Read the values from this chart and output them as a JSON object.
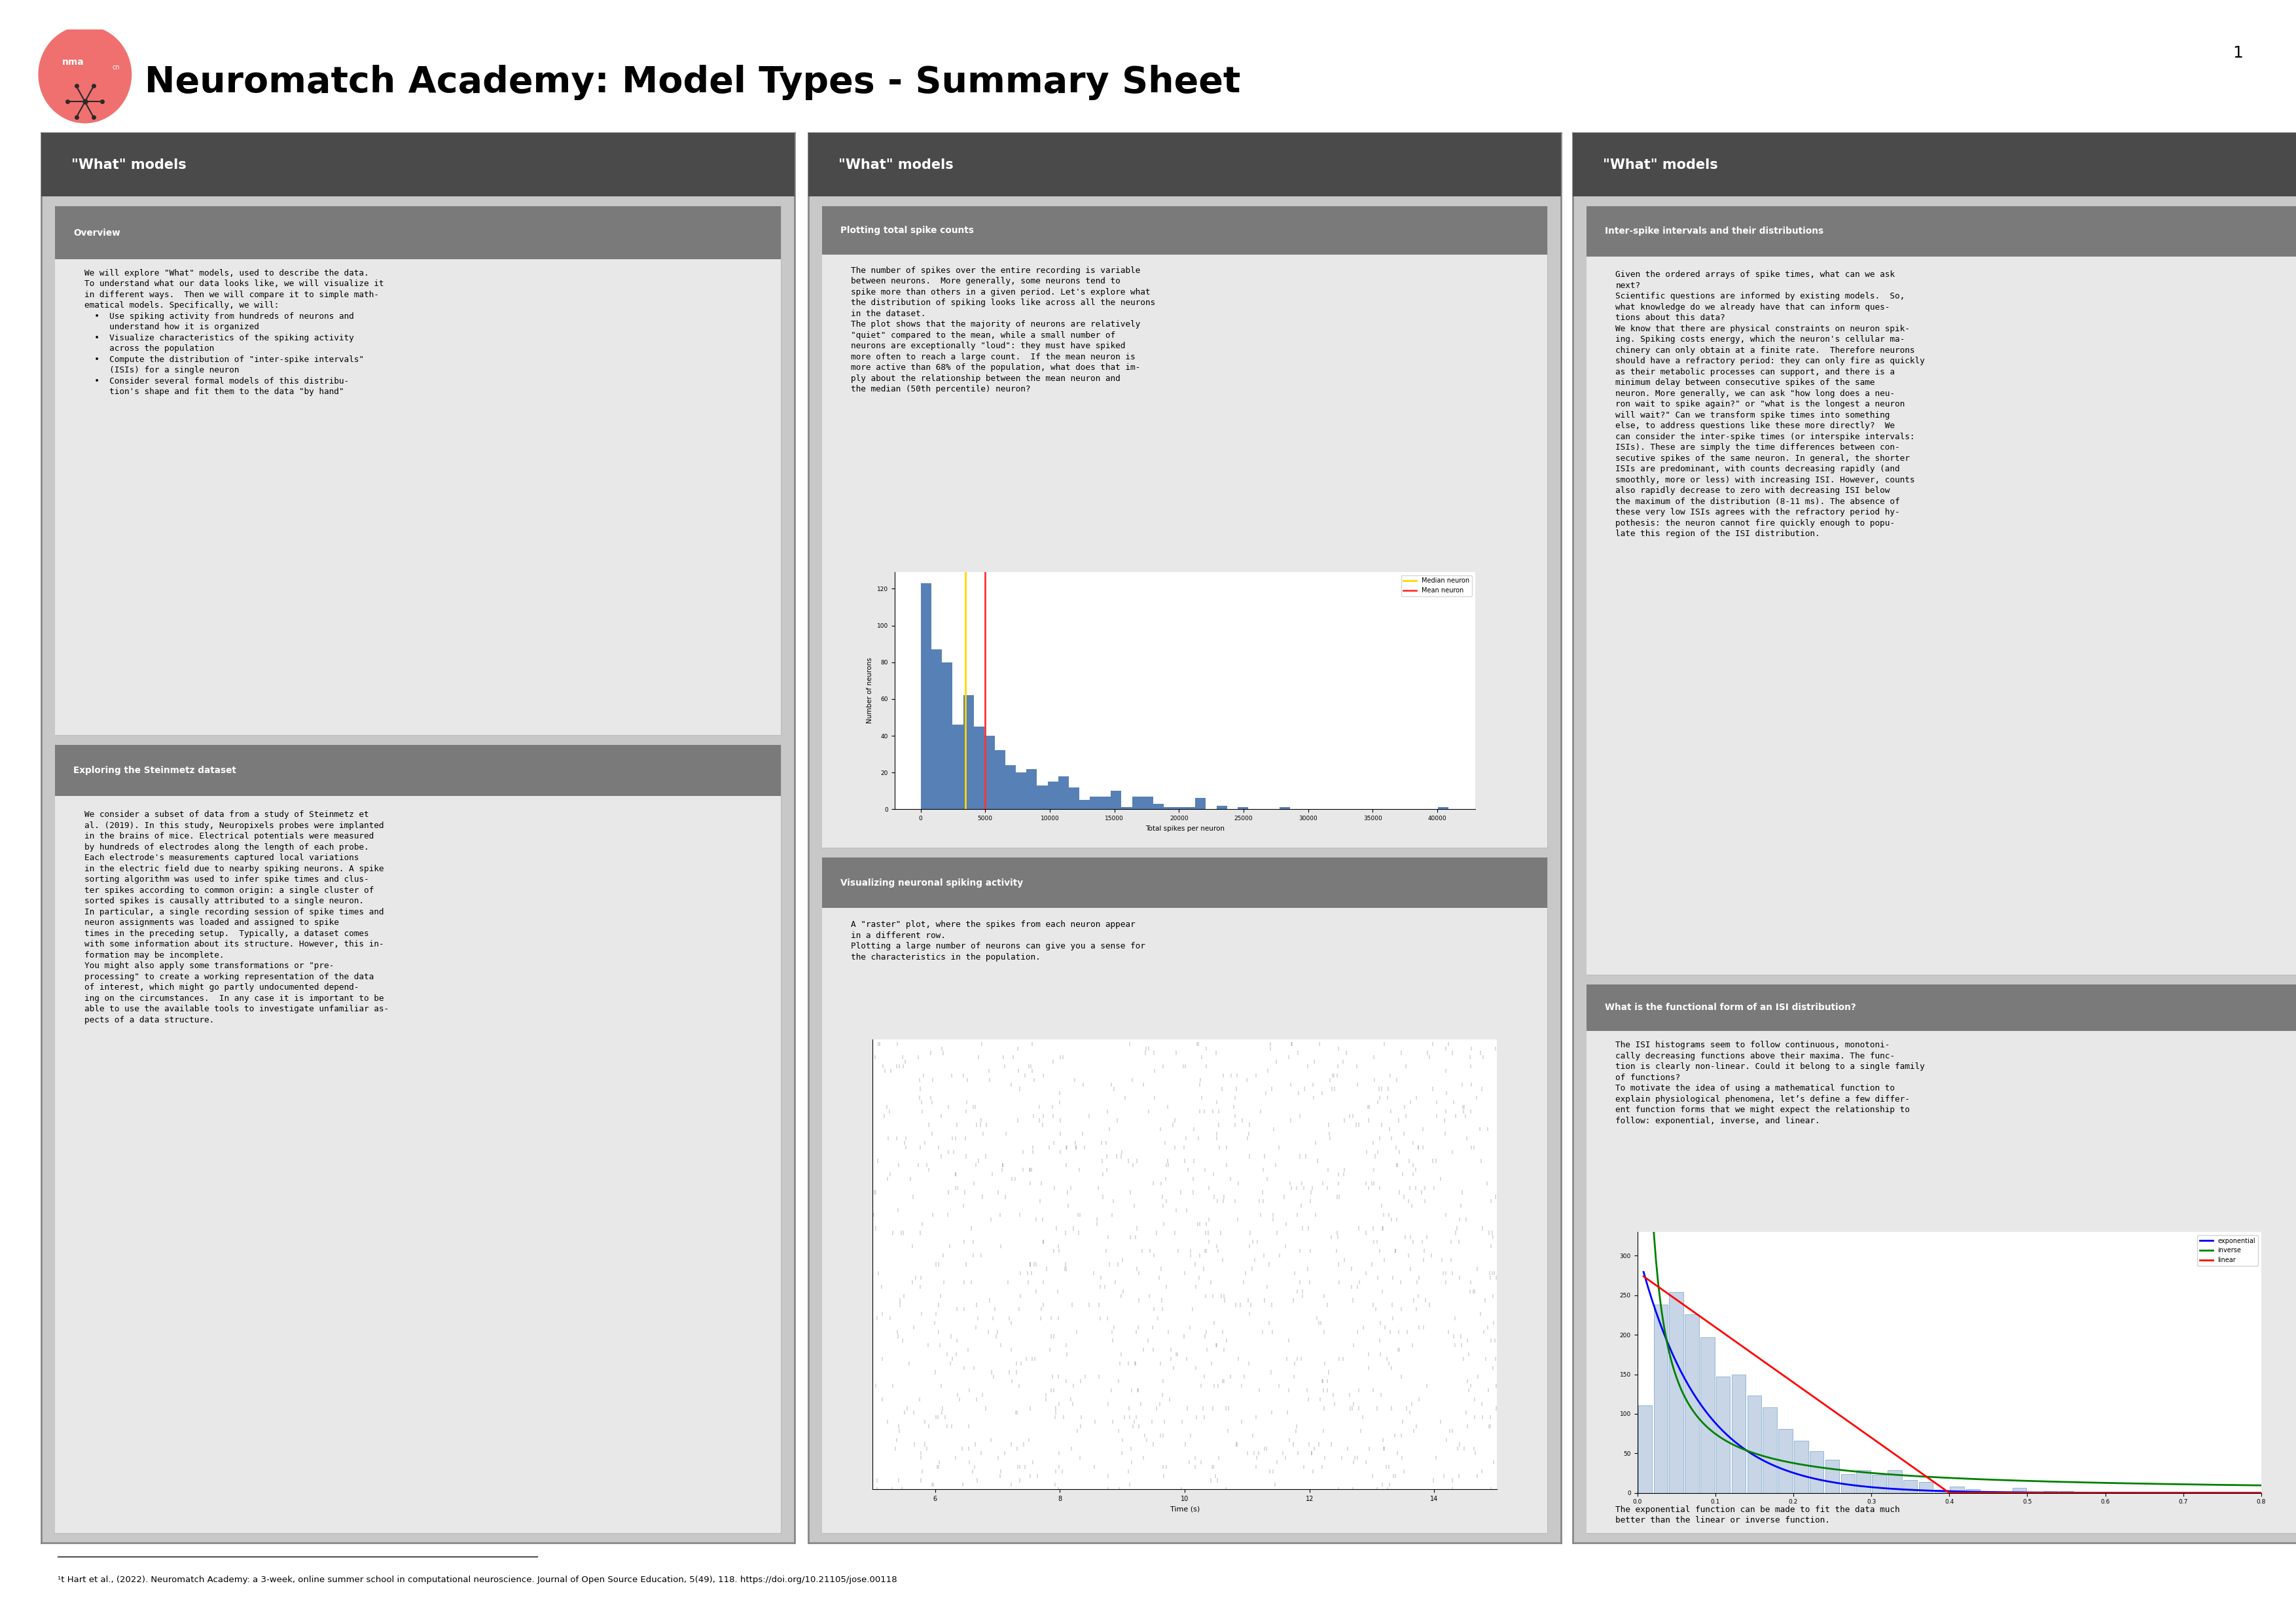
{
  "title": "Neuromatch Academy: Model Types - Summary Sheet",
  "footnote": "¹t Hart et al., (2022). Neuromatch Academy: a 3-week, online summer school in computational neuroscience. Journal of Open Source Education, 5(49), 118. https://doi.org/10.21105/jose.00118",
  "bg_color": "#ffffff",
  "panel_bg": "#c8c8c8",
  "panel_border": "#888888",
  "col_header_bg": "#4a4a4a",
  "col_header_text": "#ffffff",
  "sec_header_bg": "#7a7a7a",
  "sec_header_text": "#ffffff",
  "sec_body_bg": "#e8e8e8",
  "logo_color": "#f07070",
  "col1_header": "\"What\" models",
  "col2_header": "\"What\" models",
  "col3_header": "\"What\" models",
  "sec1_title": "Overview",
  "sec1_body": "We will explore \"What\" models, used to describe the data.\nTo understand what our data looks like, we will visualize it\nin different ways.  Then we will compare it to simple math-\nematical models. Specifically, we will:\n  •  Use spiking activity from hundreds of neurons and\n     understand how it is organized\n  •  Visualize characteristics of the spiking activity\n     across the population\n  •  Compute the distribution of \"inter-spike intervals\"\n     (ISIs) for a single neuron\n  •  Consider several formal models of this distribu-\n     tion's shape and fit them to the data \"by hand\"",
  "sec2_title": "Exploring the Steinmetz dataset",
  "sec2_body": "We consider a subset of data from a study of Steinmetz et\nal. (2019). In this study, Neuropixels probes were implanted\nin the brains of mice. Electrical potentials were measured\nby hundreds of electrodes along the length of each probe.\nEach electrode's measurements captured local variations\nin the electric field due to nearby spiking neurons. A spike\nsorting algorithm was used to infer spike times and clus-\nter spikes according to common origin: a single cluster of\nsorted spikes is causally attributed to a single neuron.\nIn particular, a single recording session of spike times and\nneuron assignments was loaded and assigned to spike\ntimes in the preceding setup.  Typically, a dataset comes\nwith some information about its structure. However, this in-\nformation may be incomplete.\nYou might also apply some transformations or \"pre-\nprocessing\" to create a working representation of the data\nof interest, which might go partly undocumented depend-\ning on the circumstances.  In any case it is important to be\nable to use the available tools to investigate unfamiliar as-\npects of a data structure.",
  "sec3_title": "Plotting total spike counts",
  "sec3_body": "The number of spikes over the entire recording is variable\nbetween neurons.  More generally, some neurons tend to\nspike more than others in a given period. Let's explore what\nthe distribution of spiking looks like across all the neurons\nin the dataset.\nThe plot shows that the majority of neurons are relatively\n\"quiet\" compared to the mean, while a small number of\nneurons are exceptionally \"loud\": they must have spiked\nmore often to reach a large count.  If the mean neuron is\nmore active than 68% of the population, what does that im-\nply about the relationship between the mean neuron and\nthe median (50th percentile) neuron?",
  "sec4_title": "Visualizing neuronal spiking activity",
  "sec4_body": "A \"raster\" plot, where the spikes from each neuron appear\nin a different row.\nPlotting a large number of neurons can give you a sense for\nthe characteristics in the population.",
  "sec5_title": "Inter-spike intervals and their distributions",
  "sec5_body": "Given the ordered arrays of spike times, what can we ask\nnext?\nScientific questions are informed by existing models.  So,\nwhat knowledge do we already have that can inform ques-\ntions about this data?\nWe know that there are physical constraints on neuron spik-\ning. Spiking costs energy, which the neuron's cellular ma-\nchinery can only obtain at a finite rate.  Therefore neurons\nshould have a refractory period: they can only fire as quickly\nas their metabolic processes can support, and there is a\nminimum delay between consecutive spikes of the same\nneuron. More generally, we can ask \"how long does a neu-\nron wait to spike again?\" or \"what is the longest a neuron\nwill wait?\" Can we transform spike times into something\nelse, to address questions like these more directly?  We\ncan consider the inter-spike times (or interspike intervals:\nISIs). These are simply the time differences between con-\nsecutive spikes of the same neuron. In general, the shorter\nISIs are predominant, with counts decreasing rapidly (and\nsmoothly, more or less) with increasing ISI. However, counts\nalso rapidly decrease to zero with decreasing ISI below\nthe maximum of the distribution (8-11 ms). The absence of\nthese very low ISIs agrees with the refractory period hy-\npothesis: the neuron cannot fire quickly enough to popu-\nlate this region of the ISI distribution.",
  "sec6_title": "What is the functional form of an ISI distribution?",
  "sec6_body": "The ISI histograms seem to follow continuous, monotoni-\ncally decreasing functions above their maxima. The func-\ntion is clearly non-linear. Could it belong to a single family\nof functions?\nTo motivate the idea of using a mathematical function to\nexplain physiological phenomena, let’s define a few differ-\nent function forms that we might expect the relationship to\nfollow: exponential, inverse, and linear.",
  "sec6_footer": "The exponential function can be made to fit the data much\nbetter than the linear or inverse function."
}
